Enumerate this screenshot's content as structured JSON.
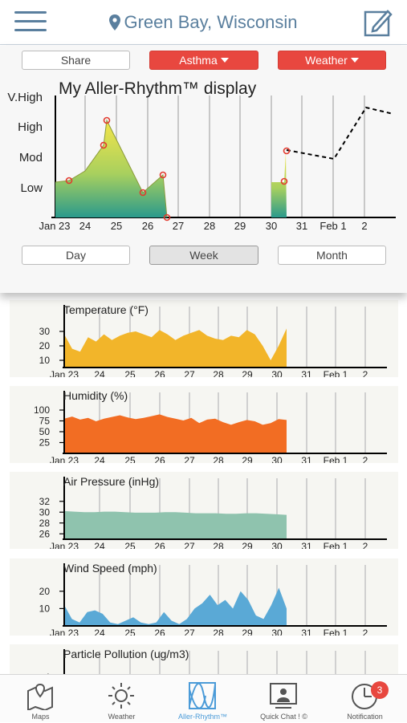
{
  "header": {
    "location": "Green Bay, Wisconsin"
  },
  "controls": {
    "share": "Share",
    "asthma": "Asthma",
    "weather": "Weather"
  },
  "main_chart": {
    "title": "My Aller-Rhythm™ display",
    "levels": [
      "V.High",
      "High",
      "Mod",
      "Low"
    ],
    "x_labels": [
      "Jan 23",
      "24",
      "25",
      "26",
      "27",
      "28",
      "29",
      "30",
      "31",
      "Feb 1",
      "2"
    ]
  },
  "range": {
    "day": "Day",
    "week": "Week",
    "month": "Month"
  },
  "x_labels": [
    "Jan 23",
    "24",
    "25",
    "26",
    "27",
    "28",
    "29",
    "30",
    "31",
    "Feb 1",
    "2"
  ],
  "panels": [
    {
      "title": "Temperature (°F)",
      "color": "#f2b52a",
      "ticks": [
        "30",
        "20",
        "10"
      ],
      "ymin": 5,
      "ymax": 35,
      "values": [
        28,
        18,
        16,
        26,
        23,
        28,
        24,
        27,
        29,
        30,
        28,
        26,
        31,
        28,
        24,
        27,
        29,
        31,
        27,
        25,
        24,
        27,
        26,
        31,
        28,
        20,
        10,
        20,
        32
      ]
    },
    {
      "title": "Humidity (%)",
      "color": "#f26d23",
      "ticks": [
        "100",
        "75",
        "50",
        "25"
      ],
      "ymin": 0,
      "ymax": 100,
      "values": [
        80,
        85,
        78,
        82,
        74,
        80,
        84,
        88,
        83,
        79,
        82,
        86,
        90,
        84,
        80,
        76,
        82,
        70,
        78,
        80,
        72,
        66,
        72,
        77,
        74,
        66,
        70,
        79,
        77
      ]
    },
    {
      "title": "Air Pressure (inHg)",
      "color": "#8fc3ae",
      "ticks": [
        "32",
        "30",
        "28",
        "26"
      ],
      "ymin": 25,
      "ymax": 33,
      "values": [
        30.2,
        30.1,
        30.0,
        30.0,
        30.1,
        30.1,
        30.0,
        29.9,
        29.9,
        29.9,
        30.0,
        30.0,
        29.9,
        29.8,
        29.8,
        29.8,
        29.7,
        29.7,
        29.8,
        29.8,
        29.7,
        29.6,
        29.5
      ]
    },
    {
      "title": "Wind Speed (mph)",
      "color": "#5aa9d6",
      "ticks": [
        "20",
        "10"
      ],
      "ymin": 0,
      "ymax": 25,
      "values": [
        12,
        4,
        2,
        8,
        9,
        7,
        2,
        1,
        3,
        5,
        2,
        1,
        2,
        8,
        3,
        1,
        4,
        10,
        13,
        18,
        12,
        15,
        10,
        20,
        15,
        6,
        4,
        12,
        22,
        10
      ]
    },
    {
      "title": "Particle Pollution (ug/m3)",
      "color": "#b0b0b0",
      "ticks": [
        "4"
      ],
      "ymin": 0,
      "ymax": 5,
      "values": []
    }
  ],
  "tabs": [
    {
      "label": "Maps",
      "icon": "map-icon"
    },
    {
      "label": "Weather",
      "icon": "sun-icon"
    },
    {
      "label": "Aller-Rhythm™",
      "icon": "wave-icon"
    },
    {
      "label": "Quick Chat ! ©",
      "icon": "chat-icon"
    },
    {
      "label": "Notification",
      "icon": "clock-icon",
      "badge": "3"
    }
  ]
}
